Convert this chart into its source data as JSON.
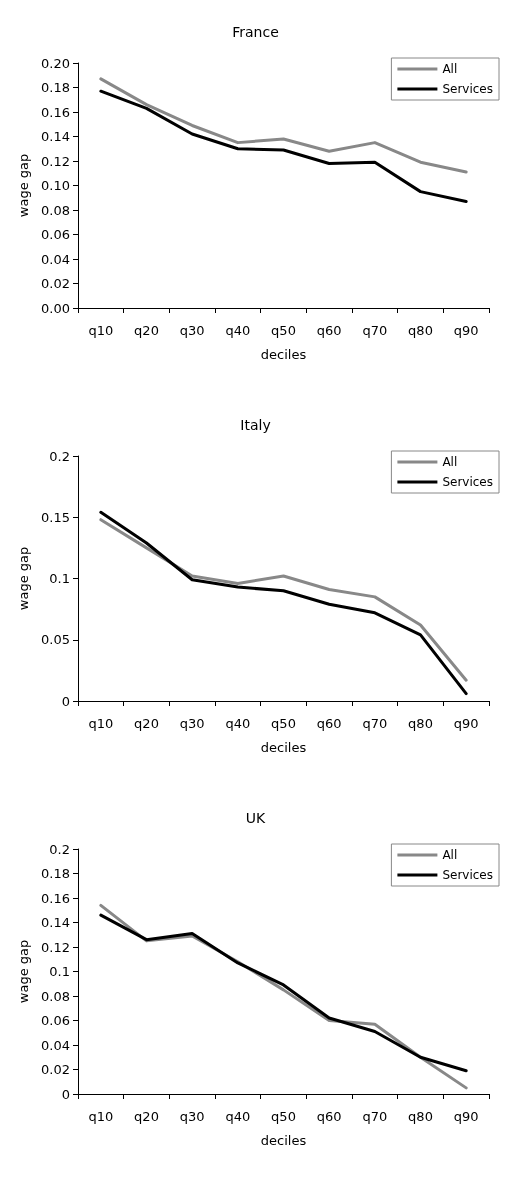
{
  "chart_data": [
    {
      "type": "line",
      "title": "France",
      "xlabel": "deciles",
      "ylabel": "wage gap",
      "categories": [
        "q10",
        "q20",
        "q30",
        "q40",
        "q50",
        "q60",
        "q70",
        "q80",
        "q90"
      ],
      "series": [
        {
          "name": "All",
          "color": "#888888",
          "values": [
            0.187,
            0.166,
            0.149,
            0.135,
            0.138,
            0.128,
            0.135,
            0.119,
            0.111
          ]
        },
        {
          "name": "Services",
          "color": "#000000",
          "values": [
            0.177,
            0.163,
            0.142,
            0.13,
            0.129,
            0.118,
            0.119,
            0.095,
            0.087
          ]
        }
      ],
      "ylim": [
        0,
        0.2
      ],
      "yticks": [
        {
          "value": 0,
          "label": "0.00"
        },
        {
          "value": 0.02,
          "label": "0.02"
        },
        {
          "value": 0.04,
          "label": "0.04"
        },
        {
          "value": 0.06,
          "label": "0.06"
        },
        {
          "value": 0.08,
          "label": "0.08"
        },
        {
          "value": 0.1,
          "label": "0.10"
        },
        {
          "value": 0.12,
          "label": "0.12"
        },
        {
          "value": 0.14,
          "label": "0.14"
        },
        {
          "value": 0.16,
          "label": "0.16"
        },
        {
          "value": 0.18,
          "label": "0.18"
        },
        {
          "value": 0.2,
          "label": "0.20"
        }
      ],
      "grid": false,
      "legend": "top right",
      "marker": "none",
      "line_style": "solid"
    },
    {
      "type": "line",
      "title": "Italy",
      "xlabel": "deciles",
      "ylabel": "wage gap",
      "categories": [
        "q10",
        "q20",
        "q30",
        "q40",
        "q50",
        "q60",
        "q70",
        "q80",
        "q90"
      ],
      "series": [
        {
          "name": "All",
          "color": "#888888",
          "values": [
            0.148,
            0.125,
            0.102,
            0.096,
            0.102,
            0.091,
            0.085,
            0.062,
            0.017
          ]
        },
        {
          "name": "Services",
          "color": "#000000",
          "values": [
            0.154,
            0.129,
            0.099,
            0.093,
            0.09,
            0.079,
            0.072,
            0.054,
            0.006
          ]
        }
      ],
      "ylim": [
        0,
        0.2
      ],
      "yticks": [
        0,
        0.05,
        0.1,
        0.15,
        0.2
      ],
      "grid": false,
      "legend": "top right",
      "marker": "none",
      "line_style": "solid"
    },
    {
      "type": "line",
      "title": "UK",
      "xlabel": "deciles",
      "ylabel": "wage gap",
      "categories": [
        "q10",
        "q20",
        "q30",
        "q40",
        "q50",
        "q60",
        "q70",
        "q80",
        "q90"
      ],
      "series": [
        {
          "name": "All",
          "color": "#888888",
          "values": [
            0.154,
            0.125,
            0.129,
            0.108,
            0.085,
            0.06,
            0.057,
            0.03,
            0.005
          ]
        },
        {
          "name": "Services",
          "color": "#000000",
          "values": [
            0.146,
            0.126,
            0.131,
            0.107,
            0.089,
            0.062,
            0.051,
            0.03,
            0.019
          ]
        }
      ],
      "ylim": [
        0,
        0.2
      ],
      "yticks": [
        0,
        0.02,
        0.04,
        0.06,
        0.08,
        0.1,
        0.12,
        0.14,
        0.16,
        0.18,
        0.2
      ],
      "grid": false,
      "legend": "top right",
      "marker": "none",
      "line_style": "solid"
    }
  ]
}
